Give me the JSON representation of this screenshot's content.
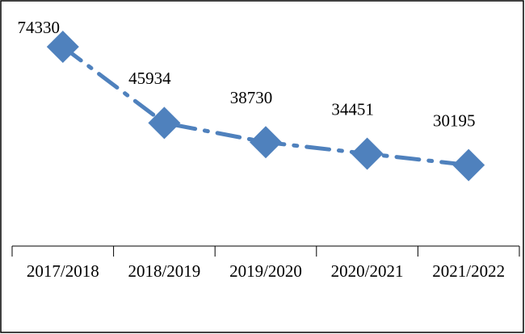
{
  "chart_data": {
    "type": "line",
    "categories": [
      "2017/2018",
      "2018/2019",
      "2019/2020",
      "2020/2021",
      "2021/2022"
    ],
    "values": [
      74330,
      45934,
      38730,
      34451,
      30195
    ],
    "color": "#4f81bd"
  }
}
